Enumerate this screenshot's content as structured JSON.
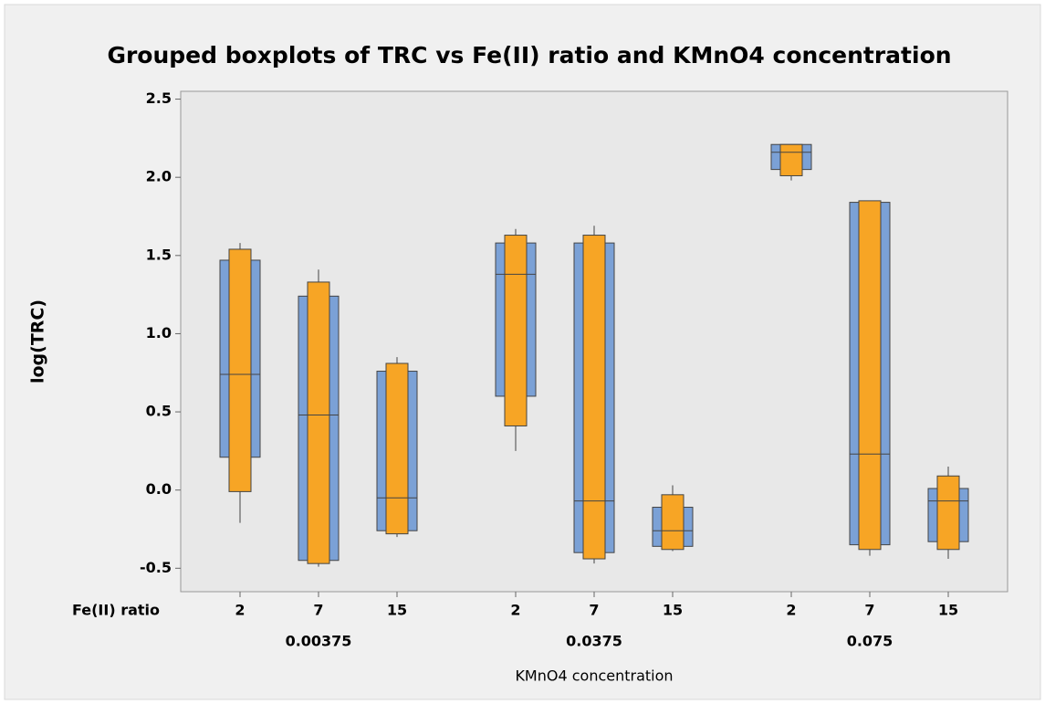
{
  "chart_data": {
    "type": "grouped-boxplot",
    "title": "Grouped boxplots of TRC vs Fe(II) ratio and KMnO4 concentration",
    "ylabel": "log(TRC)",
    "xlabel": "KMnO4 concentration",
    "inner_label": "Fe(II) ratio",
    "ylim": [
      -0.65,
      2.55
    ],
    "yticks": [
      -0.5,
      {
        "value": 0,
        "label": "0.0"
      },
      0.5,
      {
        "value": 1,
        "label": "1.0"
      },
      1.5,
      {
        "value": 2,
        "label": "2.0"
      },
      2.5
    ],
    "colors": {
      "outer": "#7ba1d6",
      "inner": "#f7a525"
    },
    "groups": [
      {
        "label": "0.00375",
        "categories": [
          "2",
          "7",
          "15"
        ],
        "boxes": [
          {
            "outer": [
              0.21,
              1.47
            ],
            "inner": [
              -0.01,
              1.54
            ],
            "median": 0.74,
            "whisker": [
              -0.21,
              1.58
            ]
          },
          {
            "outer": [
              -0.45,
              1.24
            ],
            "inner": [
              -0.47,
              1.33
            ],
            "median": 0.48,
            "whisker": [
              -0.49,
              1.41
            ]
          },
          {
            "outer": [
              -0.26,
              0.76
            ],
            "inner": [
              -0.28,
              0.81
            ],
            "median": -0.05,
            "whisker": [
              -0.3,
              0.85
            ]
          }
        ]
      },
      {
        "label": "0.0375",
        "categories": [
          "2",
          "7",
          "15"
        ],
        "boxes": [
          {
            "outer": [
              0.6,
              1.58
            ],
            "inner": [
              0.41,
              1.63
            ],
            "median": 1.38,
            "whisker": [
              0.25,
              1.67
            ]
          },
          {
            "outer": [
              -0.4,
              1.58
            ],
            "inner": [
              -0.44,
              1.63
            ],
            "median": -0.07,
            "whisker": [
              -0.47,
              1.69
            ]
          },
          {
            "outer": [
              -0.36,
              -0.11
            ],
            "inner": [
              -0.38,
              -0.03
            ],
            "median": -0.26,
            "whisker": [
              -0.39,
              0.03
            ]
          }
        ]
      },
      {
        "label": "0.075",
        "categories": [
          "2",
          "7",
          "15"
        ],
        "boxes": [
          {
            "outer": [
              2.05,
              2.21
            ],
            "inner": [
              2.01,
              2.21
            ],
            "median": 2.16,
            "whisker": [
              1.98,
              2.21
            ]
          },
          {
            "outer": [
              -0.35,
              1.84
            ],
            "inner": [
              -0.38,
              1.85
            ],
            "median": 0.23,
            "whisker": [
              -0.42,
              1.85
            ]
          },
          {
            "outer": [
              -0.33,
              0.01
            ],
            "inner": [
              -0.38,
              0.09
            ],
            "median": -0.07,
            "whisker": [
              -0.44,
              0.15
            ]
          }
        ]
      }
    ]
  }
}
